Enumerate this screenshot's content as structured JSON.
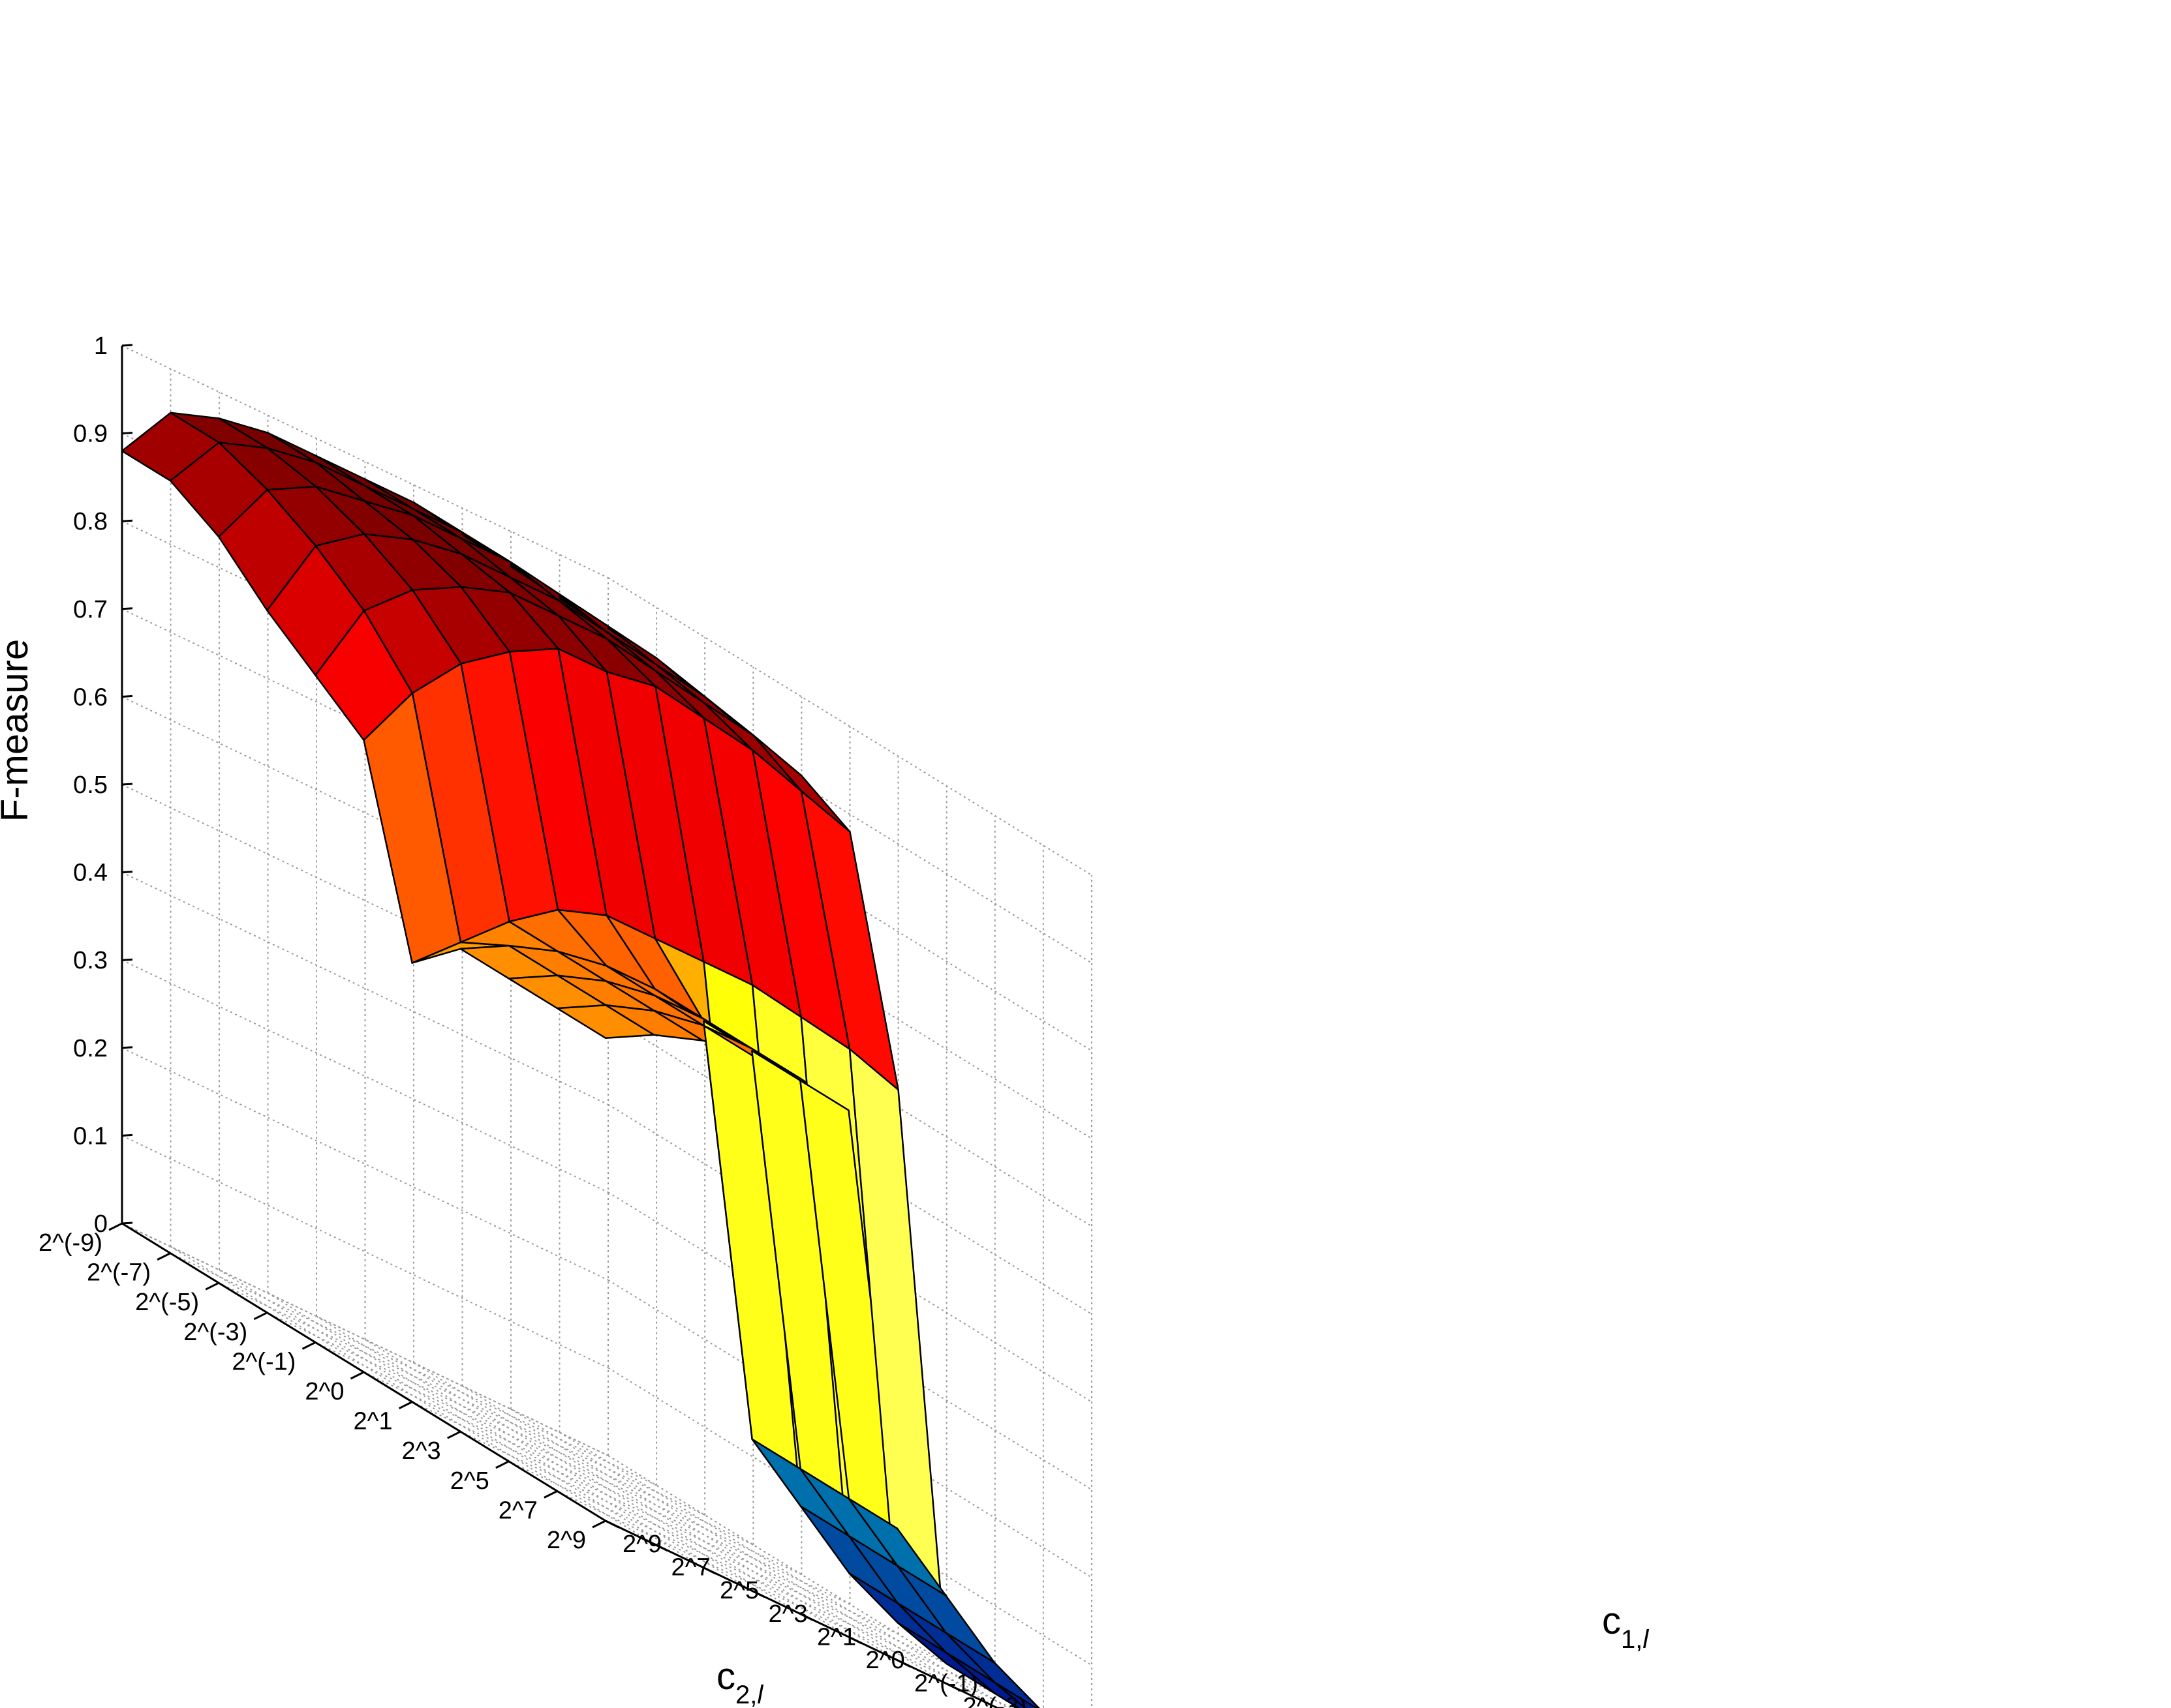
{
  "chart_data": {
    "type": "surface3d",
    "zlabel": "F-measure",
    "xlabel": {
      "main": "c",
      "sub": "1,",
      "italic": "l"
    },
    "ylabel": {
      "main": "c",
      "sub": "2,",
      "italic": "l"
    },
    "x_ticks": [
      "2^(-9)",
      "2^(-7)",
      "2^(-5)",
      "2^(-3)",
      "2^(-1)",
      "2^0",
      "2^1",
      "2^3",
      "2^5",
      "2^7",
      "2^9"
    ],
    "y_ticks": [
      "2^(-9)",
      "2^(-7)",
      "2^(-5)",
      "2^(-3)",
      "2^(-1)",
      "2^0",
      "2^1",
      "2^3",
      "2^5",
      "2^7",
      "2^9"
    ],
    "z_ticks": [
      "0",
      "0.1",
      "0.2",
      "0.3",
      "0.4",
      "0.5",
      "0.6",
      "0.7",
      "0.8",
      "0.9",
      "1"
    ],
    "zlim": [
      0,
      1
    ],
    "grid": true,
    "colormap": "hot",
    "z": [
      [
        0.94,
        0.95,
        0.96,
        0.97,
        0.98,
        0.98,
        0.98,
        0.98,
        0.97,
        0.95,
        0.88
      ],
      [
        0.94,
        0.95,
        0.96,
        0.97,
        0.98,
        0.98,
        0.98,
        0.98,
        0.97,
        0.95,
        0.88
      ],
      [
        0.93,
        0.95,
        0.96,
        0.97,
        0.98,
        0.98,
        0.98,
        0.97,
        0.96,
        0.93,
        0.85
      ],
      [
        0.92,
        0.94,
        0.95,
        0.96,
        0.97,
        0.97,
        0.97,
        0.96,
        0.94,
        0.9,
        0.8
      ],
      [
        0.91,
        0.93,
        0.94,
        0.95,
        0.96,
        0.96,
        0.96,
        0.94,
        0.91,
        0.86,
        0.76
      ],
      [
        0.88,
        0.9,
        0.92,
        0.93,
        0.94,
        0.93,
        0.93,
        0.9,
        0.86,
        0.8,
        0.72
      ],
      [
        0.62,
        0.64,
        0.65,
        0.66,
        0.66,
        0.66,
        0.66,
        0.64,
        0.6,
        0.55,
        0.5
      ],
      [
        0.0,
        0.02,
        0.05,
        0.1,
        0.15,
        0.6,
        0.61,
        0.61,
        0.6,
        0.58,
        0.55
      ],
      [
        0.0,
        0.02,
        0.05,
        0.1,
        0.15,
        0.6,
        0.61,
        0.61,
        0.6,
        0.58,
        0.55
      ],
      [
        0.0,
        0.02,
        0.05,
        0.1,
        0.15,
        0.6,
        0.61,
        0.61,
        0.6,
        0.58,
        0.55
      ],
      [
        0.0,
        0.02,
        0.05,
        0.1,
        0.15,
        0.6,
        0.61,
        0.61,
        0.6,
        0.58,
        0.55
      ]
    ]
  }
}
